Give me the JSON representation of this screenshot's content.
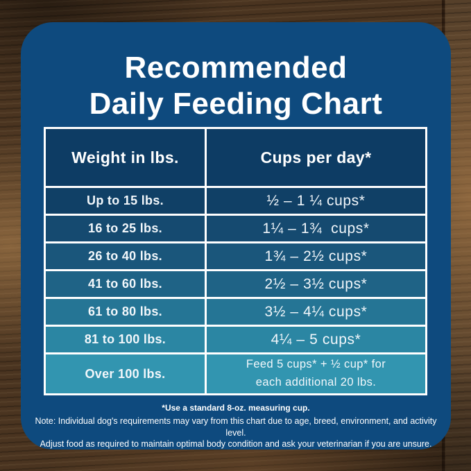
{
  "card": {
    "bg": "#0e4a7e",
    "title_line1": "Recommended",
    "title_line2": "Daily Feeding Chart"
  },
  "table": {
    "border_color": "#ffffff",
    "header": {
      "bg": "#0d3c64",
      "col1": "Weight in lbs.",
      "col2": "Cups per day*"
    },
    "rows": [
      {
        "weight": "Up to 15 lbs.",
        "cups": "½ – 1 ¼ cups*",
        "bg": "#104066"
      },
      {
        "weight": "16 to 25 lbs.",
        "cups": "1¼ – 1¾  cups*",
        "bg": "#154a70"
      },
      {
        "weight": "26 to 40 lbs.",
        "cups": "1¾ – 2½ cups*",
        "bg": "#1a567b"
      },
      {
        "weight": "41 to 60 lbs.",
        "cups": "2½ – 3½ cups*",
        "bg": "#1f6386"
      },
      {
        "weight": "61 to 80 lbs.",
        "cups": "3½ – 4¼ cups*",
        "bg": "#257595"
      },
      {
        "weight": "81 to 100 lbs.",
        "cups": "4¼ – 5 cups*",
        "bg": "#2b86a3"
      },
      {
        "weight": "Over 100 lbs.",
        "cups_line1": "Feed 5 cups* + ½ cup* for",
        "cups_line2": "each additional 20 lbs.",
        "bg": "#3295b0"
      }
    ]
  },
  "footer": {
    "bold_note": "*Use a standard 8-oz. measuring cup.",
    "note_line1": "Note: Individual dog's requirements may vary from this chart due to age, breed, environment, and activity level.",
    "note_line2": "Adjust food as required to maintain optimal body condition and ask your veterinarian if you are unsure."
  },
  "chart_data": {
    "type": "table",
    "title": "Recommended Daily Feeding Chart",
    "columns": [
      "Weight in lbs.",
      "Cups per day*"
    ],
    "rows": [
      [
        "Up to 15 lbs.",
        "½ – 1 ¼ cups*"
      ],
      [
        "16 to 25 lbs.",
        "1¼ – 1¾ cups*"
      ],
      [
        "26 to 40 lbs.",
        "1¾ – 2½ cups*"
      ],
      [
        "41 to 60 lbs.",
        "2½ – 3½ cups*"
      ],
      [
        "61 to 80 lbs.",
        "3½ – 4¼ cups*"
      ],
      [
        "81 to 100 lbs.",
        "4¼ – 5 cups*"
      ],
      [
        "Over 100 lbs.",
        "Feed 5 cups* + ½ cup* for each additional 20 lbs."
      ]
    ],
    "footnotes": [
      "*Use a standard 8-oz. measuring cup.",
      "Note: Individual dog's requirements may vary from this chart due to age, breed, environment, and activity level.",
      "Adjust food as required to maintain optimal body condition and ask your veterinarian if you are unsure."
    ]
  }
}
